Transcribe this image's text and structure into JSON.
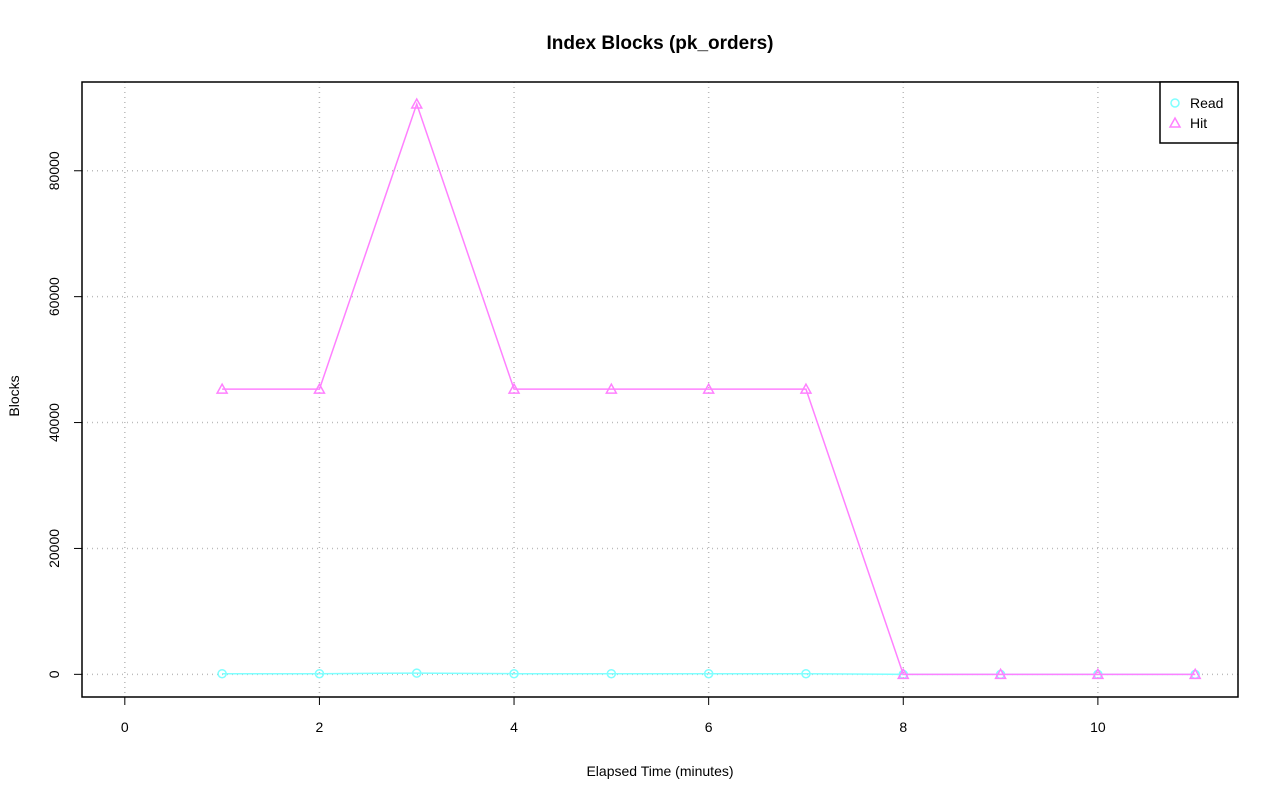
{
  "chart_data": {
    "type": "line",
    "title": "Index Blocks (pk_orders)",
    "x_label": "Elapsed Time (minutes)",
    "y_label": "Blocks",
    "x": [
      1,
      2,
      3,
      4,
      5,
      6,
      7,
      8,
      9,
      10,
      11
    ],
    "series": [
      {
        "name": "Read",
        "color": "#7fffff",
        "marker": "circle",
        "values": [
          100,
          100,
          200,
          100,
          100,
          100,
          100,
          0,
          0,
          0,
          0
        ]
      },
      {
        "name": "Hit",
        "color": "#ff80ff",
        "marker": "triangle",
        "values": [
          45300,
          45300,
          90600,
          45300,
          45300,
          45300,
          45300,
          0,
          0,
          0,
          0
        ]
      }
    ],
    "xlim": [
      -0.44,
      11.44
    ],
    "xticks": [
      0,
      2,
      4,
      6,
      8,
      10
    ],
    "ylim": [
      -3600,
      94100
    ],
    "yticks": [
      0,
      20000,
      40000,
      60000,
      80000
    ],
    "grid": true,
    "legend": "top-right"
  }
}
